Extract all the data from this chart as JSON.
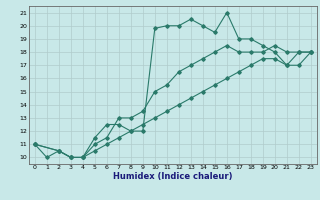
{
  "xlabel": "Humidex (Indice chaleur)",
  "bg_color": "#c8e8e8",
  "grid_color": "#b0cccc",
  "line_color": "#2a7a6a",
  "xlim": [
    -0.5,
    23.5
  ],
  "ylim": [
    9.5,
    21.5
  ],
  "xticks": [
    0,
    1,
    2,
    3,
    4,
    5,
    6,
    7,
    8,
    9,
    10,
    11,
    12,
    13,
    14,
    15,
    16,
    17,
    18,
    19,
    20,
    21,
    22,
    23
  ],
  "yticks": [
    10,
    11,
    12,
    13,
    14,
    15,
    16,
    17,
    18,
    19,
    20,
    21
  ],
  "line1_x": [
    0,
    1,
    2,
    3,
    4,
    5,
    6,
    7,
    8,
    9,
    10,
    11,
    12,
    13,
    14,
    15,
    16,
    17,
    18,
    19,
    20,
    21,
    22,
    23
  ],
  "line1_y": [
    11,
    10,
    10.5,
    10,
    10,
    11.5,
    12.5,
    12.5,
    12,
    12,
    19.8,
    20,
    20,
    20.5,
    20,
    19.5,
    21,
    19,
    19,
    18.5,
    18,
    17,
    18,
    18
  ],
  "line2_x": [
    0,
    2,
    3,
    4,
    5,
    6,
    7,
    8,
    9,
    10,
    11,
    12,
    13,
    14,
    15,
    16,
    17,
    18,
    19,
    20,
    21,
    22,
    23
  ],
  "line2_y": [
    11,
    10.5,
    10,
    10,
    11,
    11.5,
    13,
    13,
    13.5,
    15,
    15.5,
    16.5,
    17,
    17.5,
    18,
    18.5,
    18,
    18,
    18,
    18.5,
    18,
    18,
    18
  ],
  "line3_x": [
    0,
    2,
    3,
    4,
    5,
    6,
    7,
    8,
    9,
    10,
    11,
    12,
    13,
    14,
    15,
    16,
    17,
    18,
    19,
    20,
    21,
    22,
    23
  ],
  "line3_y": [
    11,
    10.5,
    10,
    10,
    10.5,
    11,
    11.5,
    12,
    12.5,
    13,
    13.5,
    14,
    14.5,
    15,
    15.5,
    16,
    16.5,
    17,
    17.5,
    17.5,
    17,
    17,
    18
  ]
}
